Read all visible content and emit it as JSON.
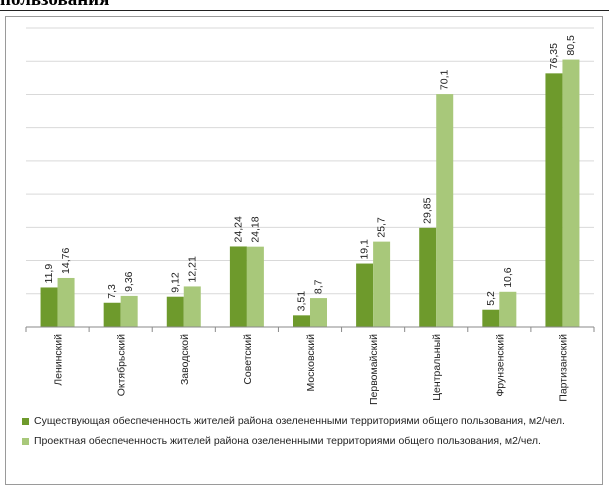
{
  "page": {
    "heading": "пользования"
  },
  "colors": {
    "series1": "#6e9a2c",
    "series2": "#a8c87a",
    "grid": "#d9d9d9",
    "axis": "#8a8a8a"
  },
  "chart_data": {
    "type": "bar",
    "categories": [
      "Ленинский",
      "Октябрьский",
      "Заводской",
      "Советский",
      "Московский",
      "Первомайский",
      "Центральный",
      "Фрунзенский",
      "Партизанский"
    ],
    "series": [
      {
        "name": "Существующая обеспеченность жителей района озелененными территориями общего пользования, м2/чел.",
        "values": [
          11.9,
          7.3,
          9.12,
          24.24,
          3.51,
          19.1,
          29.85,
          5.2,
          76.35
        ],
        "labels": [
          "11,9",
          "7,3",
          "9,12",
          "24,24",
          "3,51",
          "19,1",
          "29,85",
          "5,2",
          "76,35"
        ]
      },
      {
        "name": "Проектная обеспеченность жителей района озелененными территориями общего пользования, м2/чел.",
        "values": [
          14.76,
          9.36,
          12.21,
          24.18,
          8.7,
          25.7,
          70.1,
          10.6,
          80.5
        ],
        "labels": [
          "14,76",
          "9,36",
          "12,21",
          "24,18",
          "8,7",
          "25,7",
          "70,1",
          "10,6",
          "80,5"
        ]
      }
    ],
    "ylim": [
      0,
      90
    ],
    "grid": true,
    "legend_position": "bottom"
  }
}
